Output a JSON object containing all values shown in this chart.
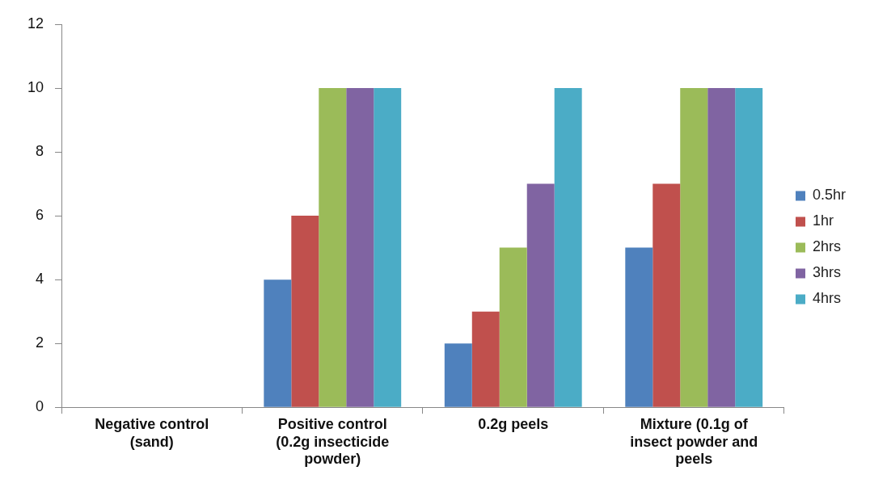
{
  "chart_data": {
    "type": "bar",
    "categories": [
      "Negative control (sand)",
      "Positive control (0.2g insecticide powder)",
      "0.2g peels",
      "Mixture (0.1g of insect powder and peels"
    ],
    "series": [
      {
        "name": "0.5hr",
        "color": "#4f81bd",
        "values": [
          0,
          4,
          2,
          5
        ]
      },
      {
        "name": "1hr",
        "color": "#c0504d",
        "values": [
          0,
          6,
          3,
          7
        ]
      },
      {
        "name": "2hrs",
        "color": "#9bbb59",
        "values": [
          0,
          10,
          5,
          10
        ]
      },
      {
        "name": "3hrs",
        "color": "#8064a2",
        "values": [
          0,
          10,
          7,
          10
        ]
      },
      {
        "name": "4hrs",
        "color": "#4bacc6",
        "values": [
          0,
          10,
          10,
          10
        ]
      }
    ],
    "ylim": [
      0,
      12
    ],
    "yticks": [
      0,
      2,
      4,
      6,
      8,
      10,
      12
    ],
    "grid": false,
    "legend": "right"
  }
}
